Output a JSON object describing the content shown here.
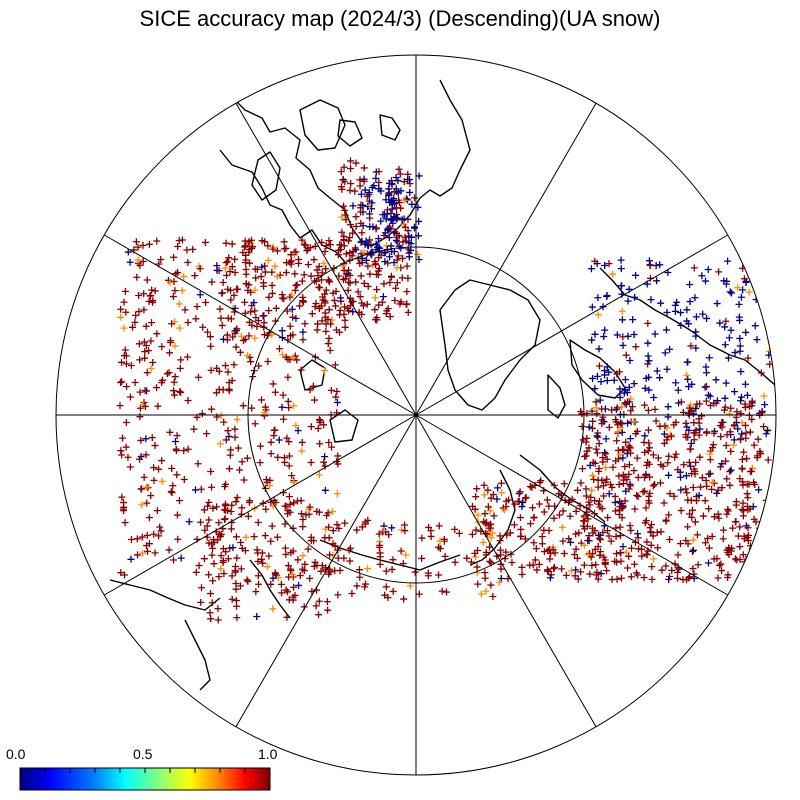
{
  "title": "SICE accuracy map (2024/3) (Descending)(UA snow)",
  "colorbar": {
    "labels": [
      "0.0",
      "0.5",
      "1.0"
    ],
    "min": 0.0,
    "max": 1.0,
    "colors": [
      "#00007f",
      "#0000ff",
      "#0080ff",
      "#00ffff",
      "#80ff80",
      "#ffff00",
      "#ff8000",
      "#ff0000",
      "#7f0000"
    ]
  },
  "marker_colors": {
    "high": "#8b0000",
    "mid": "#ff8c00",
    "low": "#00008b"
  }
}
